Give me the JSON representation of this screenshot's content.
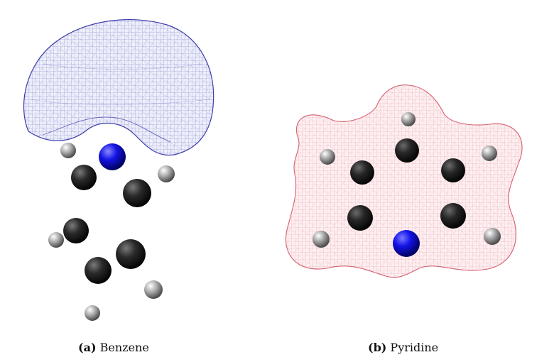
{
  "figure": {
    "panels": [
      {
        "id": "a",
        "tag": "(a)",
        "label": "Benzene",
        "surface_color": "#3a3aa8"
      },
      {
        "id": "b",
        "tag": "(b)",
        "label": "Pyridine",
        "surface_color": "#e07a86"
      }
    ],
    "atom_colors": {
      "carbon": "#1c1c1c",
      "hydrogen": "#8a8a8a",
      "nitrogen": "#1010e0"
    }
  }
}
